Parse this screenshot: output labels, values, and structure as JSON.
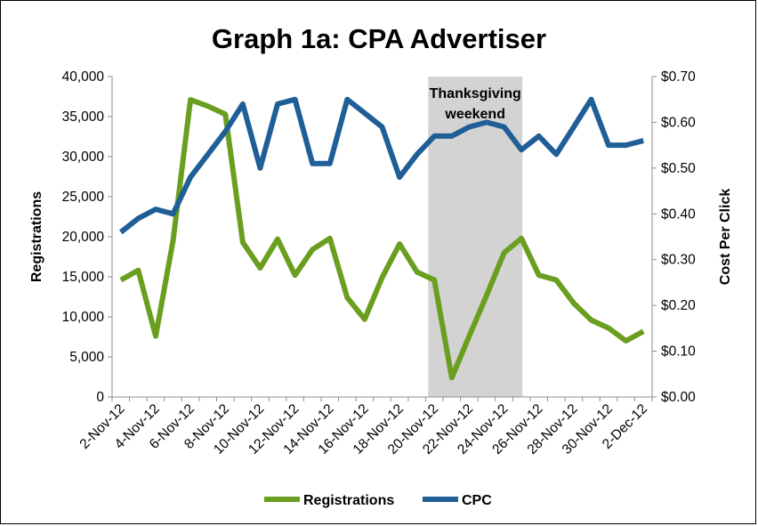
{
  "chart_data": {
    "type": "line",
    "title": "Graph 1a: CPA Advertiser",
    "ylabel_left": "Registrations",
    "ylabel_right": "Cost Per Click",
    "ylim_left": [
      0,
      40000
    ],
    "ylim_right": [
      0,
      0.7
    ],
    "left_ticks": [
      "0",
      "5,000",
      "10,000",
      "15,000",
      "20,000",
      "25,000",
      "30,000",
      "35,000",
      "40,000"
    ],
    "right_ticks": [
      "$0.00",
      "$0.10",
      "$0.20",
      "$0.30",
      "$0.40",
      "$0.50",
      "$0.60",
      "$0.70"
    ],
    "x_tick_labels": [
      "2-Nov-12",
      "4-Nov-12",
      "6-Nov-12",
      "8-Nov-12",
      "10-Nov-12",
      "12-Nov-12",
      "14-Nov-12",
      "16-Nov-12",
      "18-Nov-12",
      "20-Nov-12",
      "22-Nov-12",
      "24-Nov-12",
      "26-Nov-12",
      "28-Nov-12",
      "30-Nov-12",
      "2-Dec-12"
    ],
    "x": [
      "2-Nov-12",
      "3-Nov-12",
      "4-Nov-12",
      "5-Nov-12",
      "6-Nov-12",
      "7-Nov-12",
      "8-Nov-12",
      "9-Nov-12",
      "10-Nov-12",
      "11-Nov-12",
      "12-Nov-12",
      "13-Nov-12",
      "14-Nov-12",
      "15-Nov-12",
      "16-Nov-12",
      "17-Nov-12",
      "18-Nov-12",
      "19-Nov-12",
      "20-Nov-12",
      "21-Nov-12",
      "22-Nov-12",
      "23-Nov-12",
      "24-Nov-12",
      "25-Nov-12",
      "26-Nov-12",
      "27-Nov-12",
      "28-Nov-12",
      "29-Nov-12",
      "30-Nov-12",
      "1-Dec-12",
      "2-Dec-12"
    ],
    "series": [
      {
        "name": "Registrations",
        "axis": "left",
        "color": "#6a9e1f",
        "values": [
          14600,
          15800,
          7600,
          19500,
          37100,
          36300,
          35300,
          19300,
          16100,
          19700,
          15200,
          18400,
          19800,
          12400,
          9700,
          14900,
          19100,
          15600,
          14600,
          2400,
          7600,
          12700,
          18000,
          19800,
          15200,
          14600,
          11700,
          9600,
          8600,
          7000,
          8200
        ]
      },
      {
        "name": "CPC",
        "axis": "right",
        "color": "#1f5e96",
        "values": [
          0.36,
          0.39,
          0.41,
          0.4,
          0.48,
          0.53,
          0.58,
          0.64,
          0.5,
          0.64,
          0.65,
          0.51,
          0.51,
          0.65,
          0.62,
          0.59,
          0.48,
          0.53,
          0.57,
          0.57,
          0.59,
          0.6,
          0.59,
          0.54,
          0.57,
          0.53,
          0.59,
          0.65,
          0.55,
          0.55,
          0.56
        ]
      }
    ],
    "shaded_region": {
      "from": "20-Nov-12",
      "to": "25-Nov-12",
      "label_line1": "Thanksgiving",
      "label_line2": "weekend",
      "color": "#d3d3d3"
    },
    "grid": false,
    "legend_position": "bottom"
  }
}
